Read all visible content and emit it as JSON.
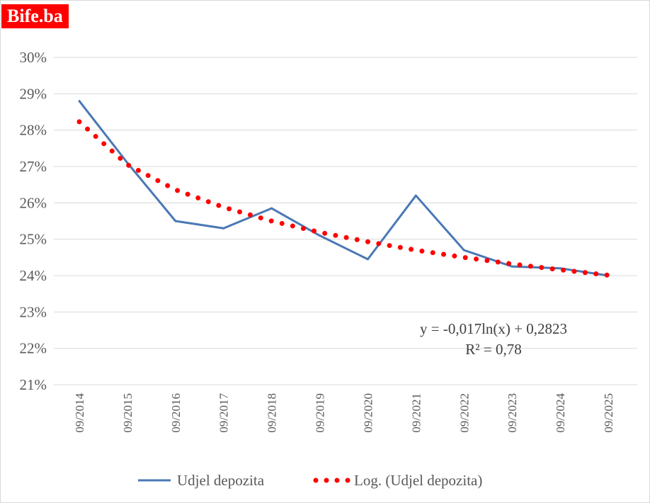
{
  "brand": {
    "label": "Bife.ba",
    "color": "#ff0000"
  },
  "chart_data": {
    "type": "line",
    "categories": [
      "09/2014",
      "09/2015",
      "09/2016",
      "09/2017",
      "09/2018",
      "09/2019",
      "09/2020",
      "09/2021",
      "09/2022",
      "09/2023",
      "09/2024",
      "09/2025"
    ],
    "ylim": [
      21,
      30
    ],
    "y_ticks": [
      "21%",
      "22%",
      "23%",
      "24%",
      "25%",
      "26%",
      "27%",
      "28%",
      "29%",
      "30%"
    ],
    "grid": true,
    "legend_position": "bottom",
    "series": [
      {
        "name": "Udjel depozita",
        "style": "solid",
        "color": "#4a78b5",
        "values": [
          28.8,
          27.1,
          25.5,
          25.3,
          25.85,
          25.1,
          24.45,
          26.2,
          24.7,
          24.25,
          24.2,
          24.0
        ]
      },
      {
        "name": "Log. (Udjel depozita)",
        "style": "dotted",
        "color": "#ff0000",
        "values": [
          28.23,
          27.05,
          26.36,
          25.88,
          25.5,
          25.19,
          24.93,
          24.7,
          24.5,
          24.32,
          24.16,
          24.01
        ]
      }
    ],
    "annotations": [
      "y = -0,017ln(x)  + 0,2823",
      "R² = 0,78"
    ]
  }
}
